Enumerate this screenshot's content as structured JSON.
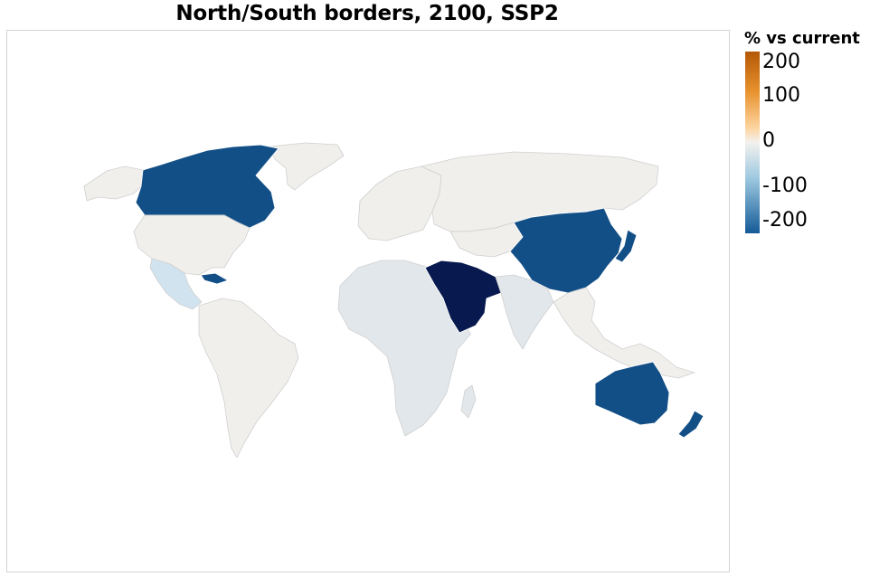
{
  "title": "North/South borders, 2100, SSP2",
  "legend": {
    "title": "% vs current",
    "ticks": [
      "200",
      "100",
      "0",
      "-100",
      "-200"
    ],
    "stops": [
      {
        "value": 200,
        "color": "#b35806"
      },
      {
        "value": 150,
        "color": "#e08214"
      },
      {
        "value": 100,
        "color": "#fdb863"
      },
      {
        "value": 0,
        "color": "#f0eeea"
      },
      {
        "value": -100,
        "color": "#92c5de"
      },
      {
        "value": -200,
        "color": "#145a97"
      }
    ]
  },
  "colors": {
    "neutral": "#f0efec",
    "slight_negative": "#e2e7eb",
    "light_blue": "#d0e3ef",
    "strong_negative": "#134f87",
    "darkest": "#07194e",
    "ocean": "#ffffff"
  }
}
